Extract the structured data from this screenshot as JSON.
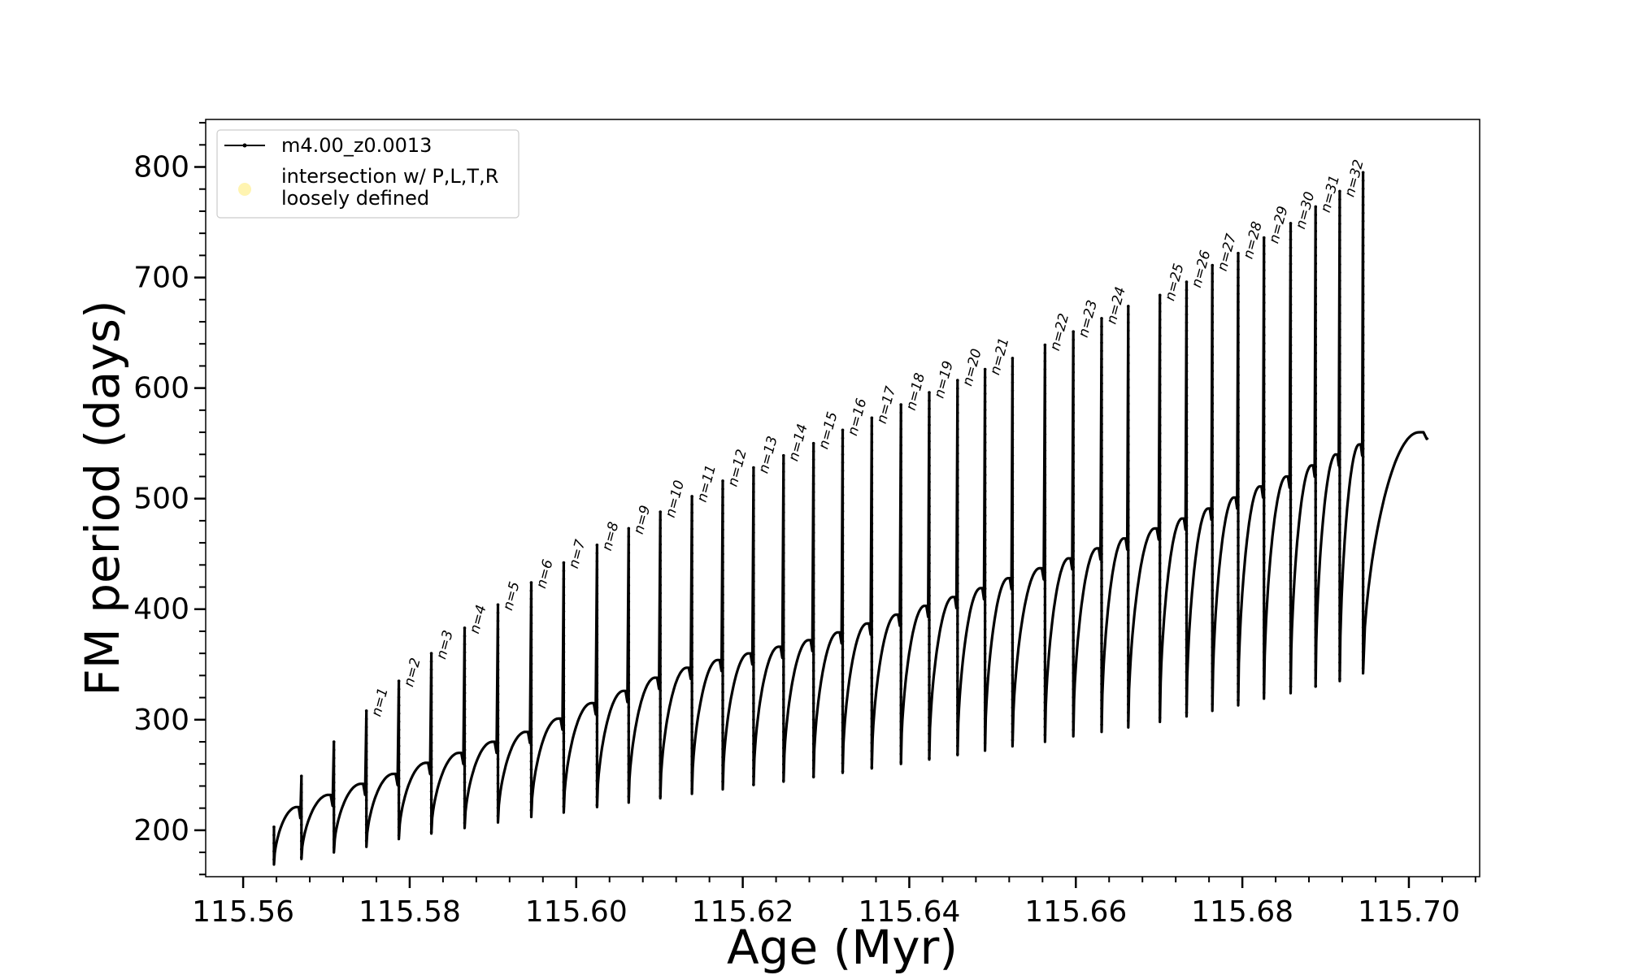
{
  "chart_data": {
    "type": "line",
    "xlabel": "Age (Myr)",
    "ylabel": "FM period (days)",
    "xlim": [
      115.5555,
      115.7085
    ],
    "ylim": [
      158,
      843
    ],
    "xticks": [
      115.56,
      115.58,
      115.6,
      115.62,
      115.64,
      115.66,
      115.68,
      115.7
    ],
    "xtick_labels": [
      "115.56",
      "115.58",
      "115.60",
      "115.62",
      "115.64",
      "115.66",
      "115.68",
      "115.70"
    ],
    "yticks": [
      200,
      300,
      400,
      500,
      600,
      700,
      800
    ],
    "ytick_labels": [
      "200",
      "300",
      "400",
      "500",
      "600",
      "700",
      "800"
    ],
    "grid": false,
    "legend": {
      "placement": "top-left",
      "entries": [
        {
          "label": "m4.00_z0.0013",
          "marker": "line-dot",
          "color": "#000000"
        },
        {
          "label_lines": [
            "intersection w/ P,L,T,R",
            "loosely defined"
          ],
          "marker": "circle",
          "color": "#fff3a8"
        }
      ]
    },
    "series": [
      {
        "name": "m4.00_z0.0013",
        "color": "#000000",
        "start_point": {
          "x": 115.5637,
          "y": 203
        },
        "end_point": {
          "x": 115.7023,
          "y": 555
        },
        "pulses": [
          {
            "x": 115.5637,
            "peak": 203,
            "min": 169,
            "rise_to": 221
          },
          {
            "x": 115.567,
            "peak": 249,
            "min": 174,
            "rise_to": 232
          },
          {
            "x": 115.5709,
            "peak": 280,
            "min": 180,
            "rise_to": 242
          },
          {
            "x": 115.5748,
            "peak": 308,
            "min": 185,
            "rise_to": 251,
            "label": "n=1"
          },
          {
            "x": 115.5787,
            "peak": 335,
            "min": 192,
            "rise_to": 261,
            "label": "n=2"
          },
          {
            "x": 115.5826,
            "peak": 360,
            "min": 197,
            "rise_to": 270,
            "label": "n=3"
          },
          {
            "x": 115.5866,
            "peak": 383,
            "min": 202,
            "rise_to": 280,
            "label": "n=4"
          },
          {
            "x": 115.5906,
            "peak": 404,
            "min": 207,
            "rise_to": 289,
            "label": "n=5"
          },
          {
            "x": 115.5946,
            "peak": 424,
            "min": 212,
            "rise_to": 301,
            "label": "n=6"
          },
          {
            "x": 115.5985,
            "peak": 442,
            "min": 216,
            "rise_to": 315,
            "label": "n=7"
          },
          {
            "x": 115.6025,
            "peak": 458,
            "min": 221,
            "rise_to": 326,
            "label": "n=8"
          },
          {
            "x": 115.6063,
            "peak": 473,
            "min": 225,
            "rise_to": 338,
            "label": "n=9"
          },
          {
            "x": 115.6101,
            "peak": 488,
            "min": 229,
            "rise_to": 347,
            "label": "n=10"
          },
          {
            "x": 115.6139,
            "peak": 502,
            "min": 233,
            "rise_to": 354,
            "label": "n=11"
          },
          {
            "x": 115.6176,
            "peak": 516,
            "min": 237,
            "rise_to": 360,
            "label": "n=12"
          },
          {
            "x": 115.6213,
            "peak": 528,
            "min": 241,
            "rise_to": 366,
            "label": "n=13"
          },
          {
            "x": 115.6249,
            "peak": 539,
            "min": 244,
            "rise_to": 372,
            "label": "n=14"
          },
          {
            "x": 115.6285,
            "peak": 550,
            "min": 248,
            "rise_to": 379,
            "label": "n=15"
          },
          {
            "x": 115.632,
            "peak": 562,
            "min": 252,
            "rise_to": 387,
            "label": "n=16"
          },
          {
            "x": 115.6355,
            "peak": 573,
            "min": 256,
            "rise_to": 395,
            "label": "n=17"
          },
          {
            "x": 115.639,
            "peak": 585,
            "min": 260,
            "rise_to": 403,
            "label": "n=18"
          },
          {
            "x": 115.6424,
            "peak": 596,
            "min": 264,
            "rise_to": 411,
            "label": "n=19"
          },
          {
            "x": 115.6458,
            "peak": 607,
            "min": 268,
            "rise_to": 419,
            "label": "n=20"
          },
          {
            "x": 115.6491,
            "peak": 617,
            "min": 272,
            "rise_to": 428,
            "label": "n=21"
          },
          {
            "x": 115.6524,
            "peak": 627,
            "min": 276,
            "rise_to": 437
          },
          {
            "x": 115.6563,
            "peak": 639,
            "min": 280,
            "rise_to": 446,
            "label": "n=22"
          },
          {
            "x": 115.6597,
            "peak": 651,
            "min": 285,
            "rise_to": 455,
            "label": "n=23"
          },
          {
            "x": 115.6631,
            "peak": 663,
            "min": 289,
            "rise_to": 464,
            "label": "n=24"
          },
          {
            "x": 115.6663,
            "peak": 674,
            "min": 293,
            "rise_to": 473
          },
          {
            "x": 115.6701,
            "peak": 684,
            "min": 298,
            "rise_to": 482,
            "label": "n=25"
          },
          {
            "x": 115.6733,
            "peak": 696,
            "min": 303,
            "rise_to": 491,
            "label": "n=26"
          },
          {
            "x": 115.6764,
            "peak": 711,
            "min": 308,
            "rise_to": 501,
            "label": "n=27"
          },
          {
            "x": 115.6795,
            "peak": 722,
            "min": 313,
            "rise_to": 511,
            "label": "n=28"
          },
          {
            "x": 115.6826,
            "peak": 736,
            "min": 319,
            "rise_to": 520,
            "label": "n=29"
          },
          {
            "x": 115.6858,
            "peak": 749,
            "min": 324,
            "rise_to": 530,
            "label": "n=30"
          },
          {
            "x": 115.6888,
            "peak": 764,
            "min": 330,
            "rise_to": 540,
            "label": "n=31"
          },
          {
            "x": 115.6917,
            "peak": 778,
            "min": 335,
            "rise_to": 549,
            "label": "n=32"
          },
          {
            "x": 115.6945,
            "peak": 795,
            "min": 342,
            "rise_to": 560
          }
        ]
      }
    ]
  }
}
